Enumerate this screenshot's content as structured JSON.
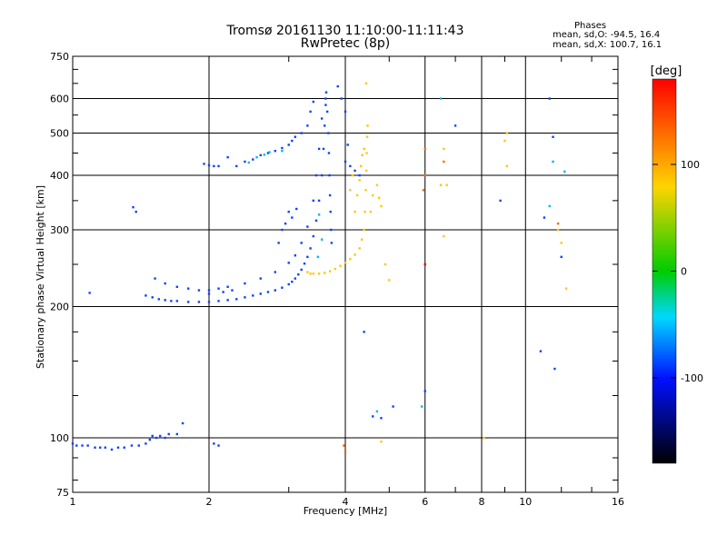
{
  "chart_data": {
    "type": "scatter",
    "title": "Tromsø 20161130 11:10:00-11:11:43",
    "subtitle": "RwPretec (8p)",
    "xlabel": "Frequency [MHz]",
    "ylabel": "Stationary phase Virtual Height [km]",
    "x_scale": "log",
    "y_scale": "log",
    "xlim": [
      1,
      16
    ],
    "ylim": [
      75,
      750
    ],
    "x_ticks": [
      1,
      2,
      4,
      6,
      8,
      10,
      16
    ],
    "y_ticks": [
      75,
      100,
      200,
      300,
      400,
      500,
      600,
      750
    ],
    "grid": true,
    "phases": {
      "title": "Phases",
      "o_text": "mean, sd,O: -94.5, 16.4",
      "x_text": "mean, sd,X: 100.7, 16.1"
    },
    "colorbar": {
      "label": "[deg]",
      "ticks": [
        "100",
        "0",
        "-100"
      ],
      "tick_values": [
        100,
        0,
        -100
      ],
      "range": [
        -180,
        180
      ]
    },
    "series": [
      {
        "phase_deg": -100,
        "color": "#1040ff",
        "points": [
          [
            1.0,
            97
          ],
          [
            1.02,
            96
          ],
          [
            1.05,
            96
          ],
          [
            1.08,
            96
          ],
          [
            1.12,
            95
          ],
          [
            1.15,
            95
          ],
          [
            1.18,
            95
          ],
          [
            1.22,
            94
          ],
          [
            1.26,
            95
          ],
          [
            1.3,
            95
          ],
          [
            1.35,
            96
          ],
          [
            1.4,
            96
          ],
          [
            1.45,
            97
          ],
          [
            1.48,
            99
          ],
          [
            1.5,
            101
          ],
          [
            1.53,
            100
          ],
          [
            1.56,
            101
          ],
          [
            1.6,
            100
          ],
          [
            1.63,
            102
          ],
          [
            1.45,
            212
          ],
          [
            1.5,
            210
          ],
          [
            1.55,
            208
          ],
          [
            1.6,
            207
          ],
          [
            1.65,
            206
          ],
          [
            1.7,
            206
          ],
          [
            1.8,
            205
          ],
          [
            1.9,
            205
          ],
          [
            2.0,
            205
          ],
          [
            2.1,
            206
          ],
          [
            2.2,
            207
          ],
          [
            2.3,
            208
          ],
          [
            2.4,
            210
          ],
          [
            2.5,
            212
          ],
          [
            2.6,
            214
          ],
          [
            2.7,
            216
          ],
          [
            2.8,
            218
          ],
          [
            2.9,
            221
          ],
          [
            3.0,
            225
          ],
          [
            3.05,
            228
          ],
          [
            3.1,
            232
          ],
          [
            3.15,
            237
          ],
          [
            3.2,
            243
          ],
          [
            3.25,
            251
          ],
          [
            3.3,
            260
          ],
          [
            3.35,
            272
          ],
          [
            3.4,
            290
          ],
          [
            3.45,
            315
          ],
          [
            3.5,
            350
          ],
          [
            3.55,
            400
          ],
          [
            3.58,
            460
          ],
          [
            3.6,
            520
          ],
          [
            3.62,
            580
          ],
          [
            3.63,
            620
          ],
          [
            3.62,
            600
          ],
          [
            3.65,
            560
          ],
          [
            3.67,
            500
          ],
          [
            3.68,
            450
          ],
          [
            3.69,
            400
          ],
          [
            3.7,
            360
          ],
          [
            3.71,
            330
          ],
          [
            3.72,
            300
          ],
          [
            3.73,
            280
          ],
          [
            1.52,
            232
          ],
          [
            1.6,
            226
          ],
          [
            1.7,
            222
          ],
          [
            1.8,
            220
          ],
          [
            1.9,
            218
          ],
          [
            2.0,
            218
          ],
          [
            2.1,
            220
          ],
          [
            2.2,
            222
          ],
          [
            2.4,
            226
          ],
          [
            2.6,
            232
          ],
          [
            2.8,
            240
          ],
          [
            3.0,
            252
          ],
          [
            3.1,
            262
          ],
          [
            3.2,
            280
          ],
          [
            3.3,
            305
          ],
          [
            3.4,
            350
          ],
          [
            3.45,
            400
          ],
          [
            3.5,
            460
          ],
          [
            3.55,
            540
          ],
          [
            1.95,
            425
          ],
          [
            2.0,
            422
          ],
          [
            2.05,
            420
          ],
          [
            2.1,
            420
          ],
          [
            2.2,
            440
          ],
          [
            2.4,
            430
          ],
          [
            2.6,
            445
          ],
          [
            2.8,
            455
          ],
          [
            3.0,
            470
          ],
          [
            3.1,
            490
          ],
          [
            3.2,
            500
          ],
          [
            3.3,
            520
          ],
          [
            3.35,
            560
          ],
          [
            3.4,
            590
          ],
          [
            2.3,
            420
          ],
          [
            2.5,
            435
          ],
          [
            2.7,
            450
          ],
          [
            2.9,
            462
          ],
          [
            3.05,
            480
          ],
          [
            1.09,
            215
          ],
          [
            1.36,
            338
          ],
          [
            1.38,
            330
          ],
          [
            2.0,
            214
          ],
          [
            2.15,
            216
          ],
          [
            2.25,
            218
          ],
          [
            3.0,
            330
          ],
          [
            3.05,
            320
          ],
          [
            3.12,
            335
          ],
          [
            2.9,
            300
          ],
          [
            2.95,
            310
          ],
          [
            2.85,
            280
          ],
          [
            4.0,
            430
          ],
          [
            4.1,
            420
          ],
          [
            4.2,
            410
          ],
          [
            4.05,
            470
          ],
          [
            4.0,
            560
          ],
          [
            3.92,
            600
          ],
          [
            3.85,
            640
          ],
          [
            4.3,
            400
          ],
          [
            2.05,
            97
          ],
          [
            2.1,
            96
          ],
          [
            1.75,
            108
          ],
          [
            1.7,
            102
          ],
          [
            4.4,
            175
          ],
          [
            4.6,
            112
          ],
          [
            4.8,
            111
          ],
          [
            5.1,
            118
          ],
          [
            6.0,
            128
          ],
          [
            7.0,
            520
          ],
          [
            8.8,
            350
          ],
          [
            10.8,
            158
          ],
          [
            11.6,
            144
          ],
          [
            11.3,
            600
          ],
          [
            11.5,
            490
          ],
          [
            12.0,
            260
          ],
          [
            11.0,
            320
          ]
        ]
      },
      {
        "phase_deg": -60,
        "color": "#00b8e0",
        "points": [
          [
            2.45,
            428
          ],
          [
            2.55,
            440
          ],
          [
            2.65,
            446
          ],
          [
            2.72,
            452
          ],
          [
            2.9,
            455
          ],
          [
            3.5,
            325
          ],
          [
            3.55,
            285
          ],
          [
            3.48,
            260
          ],
          [
            4.7,
            115
          ],
          [
            5.9,
            118
          ],
          [
            6.5,
            600
          ],
          [
            11.5,
            430
          ],
          [
            12.2,
            408
          ],
          [
            11.3,
            340
          ]
        ]
      },
      {
        "phase_deg": 100,
        "color": "#ffc800",
        "points": [
          [
            3.3,
            240
          ],
          [
            3.35,
            238
          ],
          [
            3.4,
            238
          ],
          [
            3.5,
            238
          ],
          [
            3.6,
            239
          ],
          [
            3.7,
            241
          ],
          [
            3.8,
            244
          ],
          [
            3.9,
            248
          ],
          [
            4.0,
            252
          ],
          [
            4.1,
            257
          ],
          [
            4.2,
            263
          ],
          [
            4.3,
            272
          ],
          [
            4.35,
            285
          ],
          [
            4.4,
            300
          ],
          [
            4.42,
            330
          ],
          [
            4.44,
            370
          ],
          [
            4.45,
            410
          ],
          [
            4.46,
            450
          ],
          [
            4.47,
            490
          ],
          [
            4.48,
            520
          ],
          [
            4.2,
            330
          ],
          [
            4.25,
            360
          ],
          [
            4.3,
            390
          ],
          [
            4.33,
            420
          ],
          [
            4.36,
            445
          ],
          [
            4.1,
            370
          ],
          [
            4.15,
            400
          ],
          [
            4.4,
            460
          ],
          [
            4.7,
            380
          ],
          [
            4.75,
            355
          ],
          [
            4.8,
            340
          ],
          [
            4.6,
            360
          ],
          [
            4.55,
            330
          ],
          [
            4.9,
            250
          ],
          [
            5.0,
            230
          ],
          [
            4.45,
            650
          ],
          [
            6.6,
            460
          ],
          [
            6.5,
            380
          ],
          [
            6.7,
            380
          ],
          [
            6.6,
            290
          ],
          [
            9.1,
            500
          ],
          [
            9.0,
            480
          ],
          [
            9.1,
            420
          ],
          [
            8.1,
            100
          ],
          [
            11.8,
            300
          ],
          [
            12.0,
            280
          ],
          [
            12.3,
            220
          ],
          [
            4.8,
            98
          ]
        ]
      },
      {
        "phase_deg": 150,
        "color": "#ff6a00",
        "points": [
          [
            6.0,
            460
          ],
          [
            6.0,
            400
          ],
          [
            5.95,
            370
          ],
          [
            6.6,
            430
          ],
          [
            11.8,
            310
          ],
          [
            3.97,
            96
          ],
          [
            4.0,
            93
          ]
        ]
      },
      {
        "phase_deg": 175,
        "color": "#e00000",
        "points": [
          [
            6.0,
            250
          ]
        ]
      }
    ]
  }
}
